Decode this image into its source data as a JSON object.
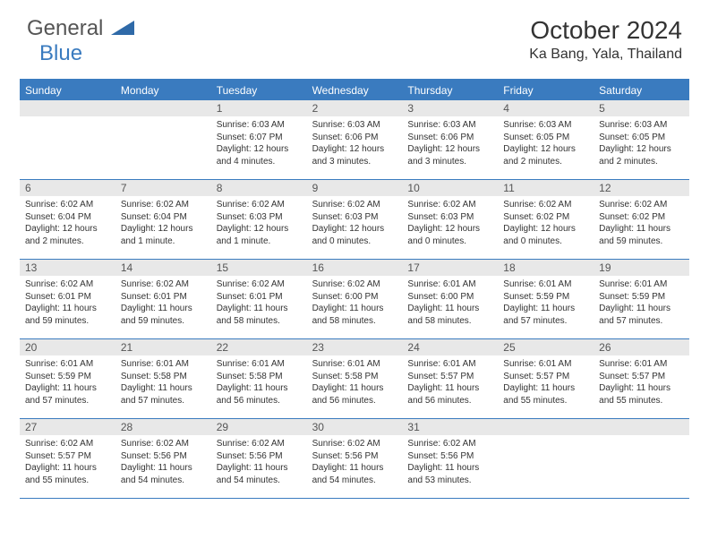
{
  "logo": {
    "word1": "General",
    "word2": "Blue"
  },
  "title": "October 2024",
  "location": "Ka Bang, Yala, Thailand",
  "header_color": "#3a7bbf",
  "daynum_bg": "#e8e8e8",
  "weekdays": [
    "Sunday",
    "Monday",
    "Tuesday",
    "Wednesday",
    "Thursday",
    "Friday",
    "Saturday"
  ],
  "weeks": [
    [
      null,
      null,
      {
        "n": "1",
        "sr": "6:03 AM",
        "ss": "6:07 PM",
        "dl": "12 hours and 4 minutes."
      },
      {
        "n": "2",
        "sr": "6:03 AM",
        "ss": "6:06 PM",
        "dl": "12 hours and 3 minutes."
      },
      {
        "n": "3",
        "sr": "6:03 AM",
        "ss": "6:06 PM",
        "dl": "12 hours and 3 minutes."
      },
      {
        "n": "4",
        "sr": "6:03 AM",
        "ss": "6:05 PM",
        "dl": "12 hours and 2 minutes."
      },
      {
        "n": "5",
        "sr": "6:03 AM",
        "ss": "6:05 PM",
        "dl": "12 hours and 2 minutes."
      }
    ],
    [
      {
        "n": "6",
        "sr": "6:02 AM",
        "ss": "6:04 PM",
        "dl": "12 hours and 2 minutes."
      },
      {
        "n": "7",
        "sr": "6:02 AM",
        "ss": "6:04 PM",
        "dl": "12 hours and 1 minute."
      },
      {
        "n": "8",
        "sr": "6:02 AM",
        "ss": "6:03 PM",
        "dl": "12 hours and 1 minute."
      },
      {
        "n": "9",
        "sr": "6:02 AM",
        "ss": "6:03 PM",
        "dl": "12 hours and 0 minutes."
      },
      {
        "n": "10",
        "sr": "6:02 AM",
        "ss": "6:03 PM",
        "dl": "12 hours and 0 minutes."
      },
      {
        "n": "11",
        "sr": "6:02 AM",
        "ss": "6:02 PM",
        "dl": "12 hours and 0 minutes."
      },
      {
        "n": "12",
        "sr": "6:02 AM",
        "ss": "6:02 PM",
        "dl": "11 hours and 59 minutes."
      }
    ],
    [
      {
        "n": "13",
        "sr": "6:02 AM",
        "ss": "6:01 PM",
        "dl": "11 hours and 59 minutes."
      },
      {
        "n": "14",
        "sr": "6:02 AM",
        "ss": "6:01 PM",
        "dl": "11 hours and 59 minutes."
      },
      {
        "n": "15",
        "sr": "6:02 AM",
        "ss": "6:01 PM",
        "dl": "11 hours and 58 minutes."
      },
      {
        "n": "16",
        "sr": "6:02 AM",
        "ss": "6:00 PM",
        "dl": "11 hours and 58 minutes."
      },
      {
        "n": "17",
        "sr": "6:01 AM",
        "ss": "6:00 PM",
        "dl": "11 hours and 58 minutes."
      },
      {
        "n": "18",
        "sr": "6:01 AM",
        "ss": "5:59 PM",
        "dl": "11 hours and 57 minutes."
      },
      {
        "n": "19",
        "sr": "6:01 AM",
        "ss": "5:59 PM",
        "dl": "11 hours and 57 minutes."
      }
    ],
    [
      {
        "n": "20",
        "sr": "6:01 AM",
        "ss": "5:59 PM",
        "dl": "11 hours and 57 minutes."
      },
      {
        "n": "21",
        "sr": "6:01 AM",
        "ss": "5:58 PM",
        "dl": "11 hours and 57 minutes."
      },
      {
        "n": "22",
        "sr": "6:01 AM",
        "ss": "5:58 PM",
        "dl": "11 hours and 56 minutes."
      },
      {
        "n": "23",
        "sr": "6:01 AM",
        "ss": "5:58 PM",
        "dl": "11 hours and 56 minutes."
      },
      {
        "n": "24",
        "sr": "6:01 AM",
        "ss": "5:57 PM",
        "dl": "11 hours and 56 minutes."
      },
      {
        "n": "25",
        "sr": "6:01 AM",
        "ss": "5:57 PM",
        "dl": "11 hours and 55 minutes."
      },
      {
        "n": "26",
        "sr": "6:01 AM",
        "ss": "5:57 PM",
        "dl": "11 hours and 55 minutes."
      }
    ],
    [
      {
        "n": "27",
        "sr": "6:02 AM",
        "ss": "5:57 PM",
        "dl": "11 hours and 55 minutes."
      },
      {
        "n": "28",
        "sr": "6:02 AM",
        "ss": "5:56 PM",
        "dl": "11 hours and 54 minutes."
      },
      {
        "n": "29",
        "sr": "6:02 AM",
        "ss": "5:56 PM",
        "dl": "11 hours and 54 minutes."
      },
      {
        "n": "30",
        "sr": "6:02 AM",
        "ss": "5:56 PM",
        "dl": "11 hours and 54 minutes."
      },
      {
        "n": "31",
        "sr": "6:02 AM",
        "ss": "5:56 PM",
        "dl": "11 hours and 53 minutes."
      },
      null,
      null
    ]
  ],
  "labels": {
    "sunrise": "Sunrise:",
    "sunset": "Sunset:",
    "daylight": "Daylight:"
  }
}
